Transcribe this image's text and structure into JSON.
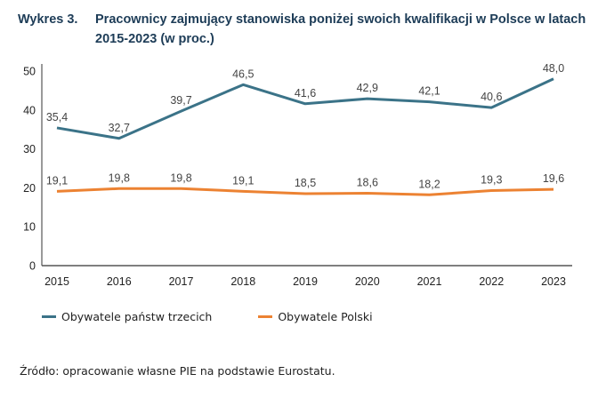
{
  "figure": {
    "label": "Wykres 3.",
    "title": "Pracownicy zajmujący stanowiska poniżej swoich kwalifikacji w Polsce w latach 2015-2023 (w proc.)",
    "source": "Źródło: opracowanie własne PIE na podstawie Eurostatu."
  },
  "chart_data": {
    "type": "line",
    "title": "Pracownicy zajmujący stanowiska poniżej swoich kwalifikacji w Polsce w latach 2015-2023 (w proc.)",
    "xlabel": "",
    "ylabel": "",
    "x": [
      "2015",
      "2016",
      "2017",
      "2018",
      "2019",
      "2020",
      "2021",
      "2022",
      "2023"
    ],
    "ylim": [
      0,
      50
    ],
    "yticks": [
      0,
      10,
      20,
      30,
      40,
      50
    ],
    "grid": false,
    "legend_position": "bottom-left",
    "series": [
      {
        "name": "Obywatele państw trzecich",
        "color": "#3b7388",
        "values": [
          35.4,
          32.7,
          39.7,
          46.5,
          41.6,
          42.9,
          42.1,
          40.6,
          48.0
        ],
        "labels": [
          "35,4",
          "32,7",
          "39,7",
          "46,5",
          "41,6",
          "42,9",
          "42,1",
          "40,6",
          "48,0"
        ]
      },
      {
        "name": "Obywatele Polski",
        "color": "#ec8232",
        "values": [
          19.1,
          19.8,
          19.8,
          19.1,
          18.5,
          18.6,
          18.2,
          19.3,
          19.6
        ],
        "labels": [
          "19,1",
          "19,8",
          "19,8",
          "19,1",
          "18,5",
          "18,6",
          "18,2",
          "19,3",
          "19,6"
        ]
      }
    ]
  }
}
